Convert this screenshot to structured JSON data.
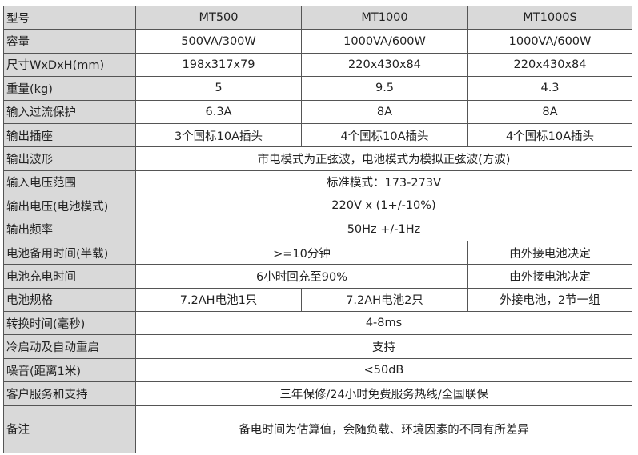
{
  "header": {
    "label": "型号",
    "models": [
      "MT500",
      "MT1000",
      "MT1000S"
    ]
  },
  "rows": [
    {
      "label": "容量",
      "values": [
        "500VA/300W",
        "1000VA/600W",
        "1000VA/600W"
      ]
    },
    {
      "label": "尺寸WxDxH(mm)",
      "values": [
        "198x317x79",
        "220x430x84",
        "220x430x84"
      ]
    },
    {
      "label": "重量(kg)",
      "values": [
        "5",
        "9.5",
        "4.3"
      ]
    },
    {
      "label": "输入过流保护",
      "values": [
        "6.3A",
        "8A",
        "8A"
      ]
    },
    {
      "label": "输出插座",
      "values": [
        "3个国标10A插头",
        "4个国标10A插头",
        "4个国标10A插头"
      ]
    },
    {
      "label": "输出波形",
      "value": "市电模式为正弦波，电池模式为模拟正弦波(方波)"
    },
    {
      "label": "输入电压范围",
      "value": "标准模式：173-273V"
    },
    {
      "label": "输出电压(电池模式)",
      "value": "220V x (1+/-10%)"
    },
    {
      "label": "输出频率",
      "value": "50Hz +/-1Hz"
    },
    {
      "label": "电池备用时间(半载)",
      "values": [
        ">=10分钟",
        "由外接电池决定"
      ]
    },
    {
      "label": "电池充电时间",
      "values": [
        "6小时回充至90%",
        "由外接电池决定"
      ]
    },
    {
      "label": "电池规格",
      "values": [
        "7.2AH电池1只",
        "7.2AH电池2只",
        "外接电池，2节一组"
      ]
    },
    {
      "label": "转换时间(毫秒)",
      "value": "4-8ms"
    },
    {
      "label": "冷启动及自动重启",
      "value": "支持"
    },
    {
      "label": "噪音(距离1米)",
      "value": "<50dB"
    },
    {
      "label": "客户服务和支持",
      "value": "三年保修/24小时免费服务热线/全国联保"
    },
    {
      "label": "备注",
      "value": "备电时间为估算值，会随负载、环境因素的不同有所差异"
    }
  ]
}
